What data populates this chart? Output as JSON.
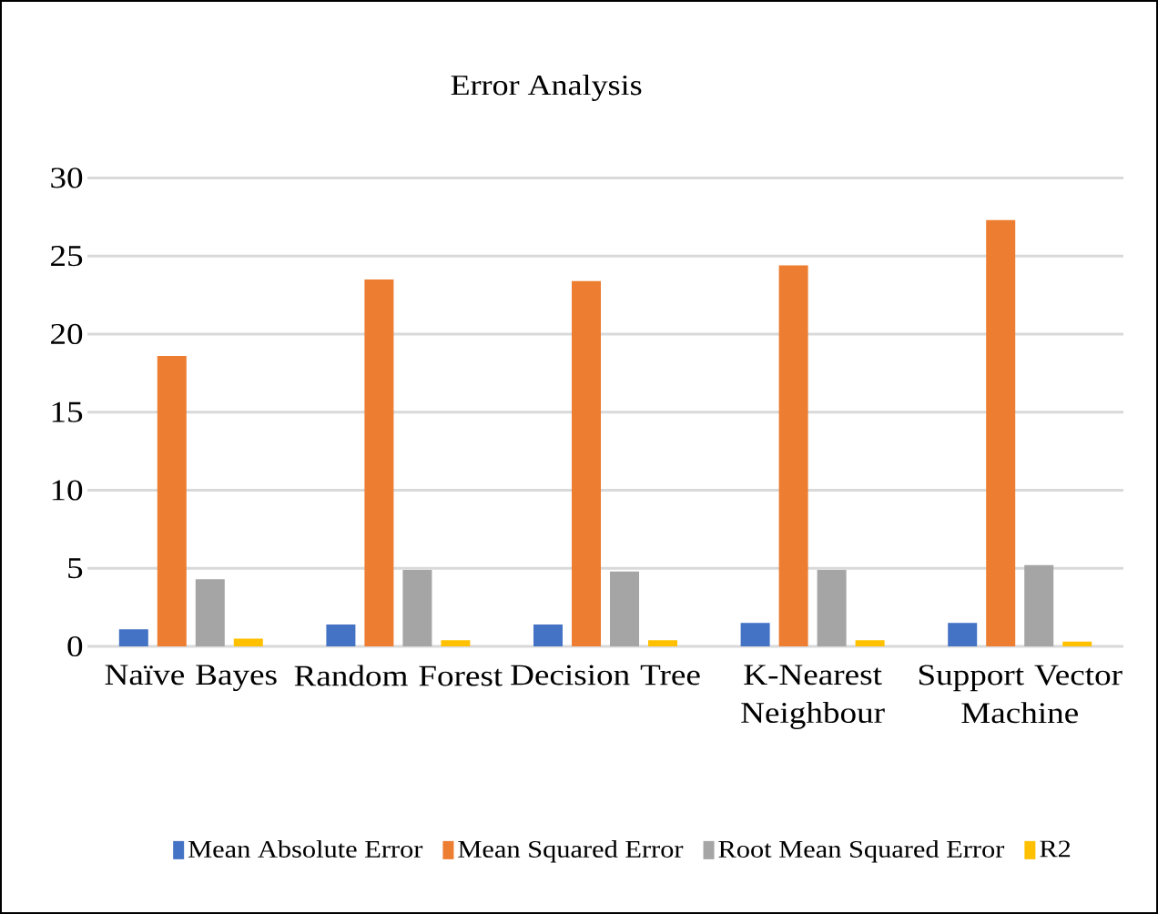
{
  "chart_data": {
    "type": "bar",
    "title": "Error Analysis",
    "categories": [
      "Naïve Bayes",
      "Random Forest",
      "Decision Tree",
      "K-Nearest Neighbour",
      "Support Vector Machine"
    ],
    "series": [
      {
        "name": "Mean Absolute Error",
        "color": "#4472c4",
        "values": [
          1.1,
          1.4,
          1.4,
          1.5,
          1.5
        ]
      },
      {
        "name": "Mean Squared Error",
        "color": "#ed7d31",
        "values": [
          18.6,
          23.5,
          23.4,
          24.4,
          27.3
        ]
      },
      {
        "name": "Root Mean Squared Error",
        "color": "#a5a5a5",
        "values": [
          4.3,
          4.9,
          4.8,
          4.9,
          5.2
        ]
      },
      {
        "name": "R2",
        "color": "#ffc000",
        "values": [
          0.5,
          0.4,
          0.4,
          0.4,
          0.3
        ]
      }
    ],
    "ylim": [
      0,
      30
    ],
    "yticks": [
      0,
      5,
      10,
      15,
      20,
      25,
      30
    ],
    "grid": "y",
    "legend": "bottom"
  }
}
